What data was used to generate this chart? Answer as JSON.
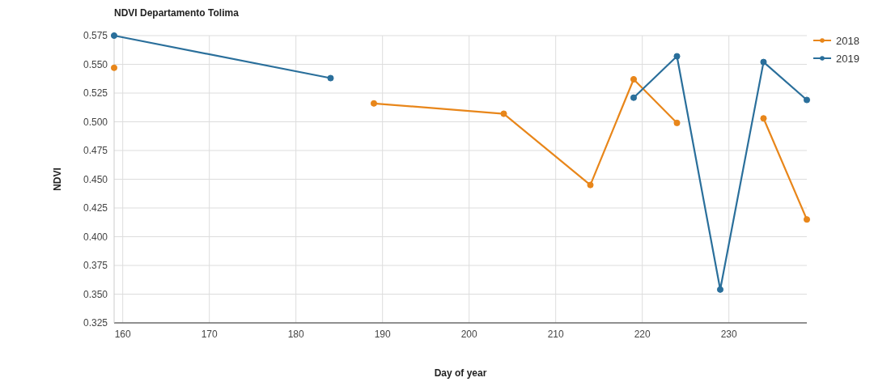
{
  "chart_data": {
    "type": "line",
    "title": "NDVI Departamento Tolima",
    "xlabel": "Day of year",
    "ylabel": "NDVI",
    "x": [
      159,
      184,
      189,
      204,
      214,
      219,
      224,
      229,
      234,
      239
    ],
    "series": [
      {
        "name": "2018",
        "color": "#e8861a",
        "values": [
          0.547,
          null,
          0.516,
          0.507,
          0.445,
          0.537,
          0.499,
          null,
          0.503,
          0.415
        ]
      },
      {
        "name": "2019",
        "color": "#2a6f9b",
        "values": [
          0.575,
          0.538,
          null,
          null,
          null,
          0.521,
          0.557,
          0.354,
          0.552,
          0.519
        ]
      }
    ],
    "xlim": [
      159,
      239
    ],
    "xticks": [
      160,
      170,
      180,
      190,
      200,
      210,
      220,
      230
    ],
    "ylim": [
      0.325,
      0.575
    ],
    "yticks": [
      {
        "value": 0.325,
        "label": "0.325"
      },
      {
        "value": 0.35,
        "label": "0.350"
      },
      {
        "value": 0.375,
        "label": "0.375"
      },
      {
        "value": 0.4,
        "label": "0.400"
      },
      {
        "value": 0.425,
        "label": "0.425"
      },
      {
        "value": 0.45,
        "label": "0.450"
      },
      {
        "value": 0.475,
        "label": "0.475"
      },
      {
        "value": 0.5,
        "label": "0.500"
      },
      {
        "value": 0.525,
        "label": "0.525"
      },
      {
        "value": 0.55,
        "label": "0.550"
      },
      {
        "value": 0.575,
        "label": "0.575"
      }
    ],
    "grid": true,
    "legend": "top right",
    "marker": "circle",
    "line_style": "solid"
  }
}
